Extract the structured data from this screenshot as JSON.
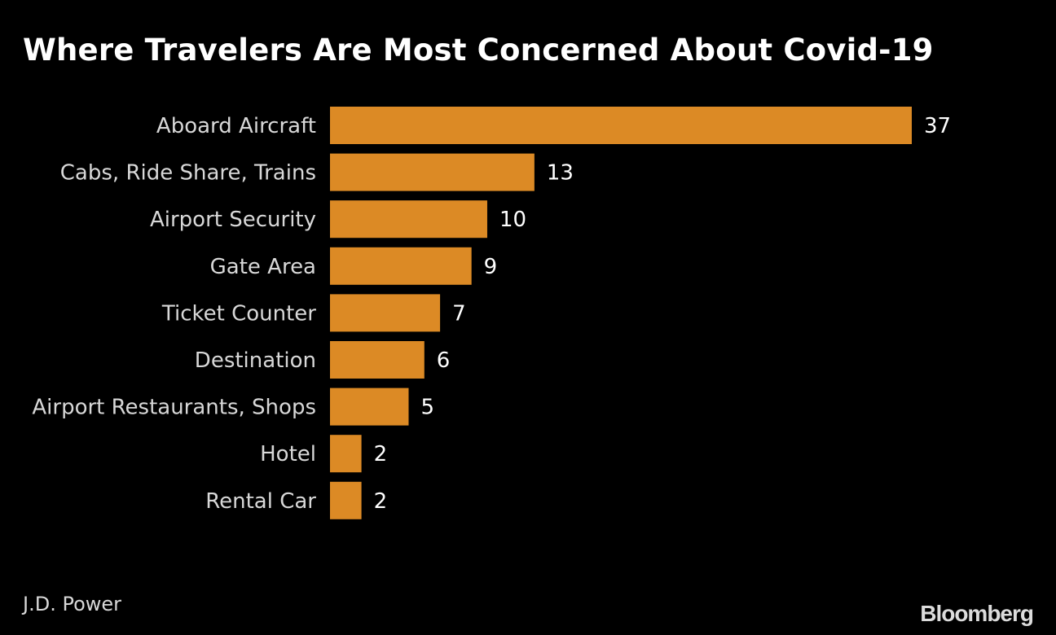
{
  "chart_data": {
    "type": "bar",
    "orientation": "horizontal",
    "title": "Where Travelers Are Most Concerned About Covid-19",
    "categories": [
      "Aboard Aircraft",
      "Cabs, Ride Share, Trains",
      "Airport Security",
      "Gate Area",
      "Ticket Counter",
      "Destination",
      "Airport Restaurants, Shops",
      "Hotel",
      "Rental Car"
    ],
    "values": [
      37,
      13,
      10,
      9,
      7,
      6,
      5,
      2,
      2
    ],
    "data_labels": [
      "37",
      "13",
      "10",
      "9",
      "7",
      "6",
      "5",
      "2",
      "2"
    ],
    "bar_color": "#dc8a25",
    "background": "#000000",
    "xlim": [
      0,
      37
    ],
    "grid": false,
    "source": "J.D. Power"
  },
  "branding": {
    "logo": "Bloomberg"
  }
}
